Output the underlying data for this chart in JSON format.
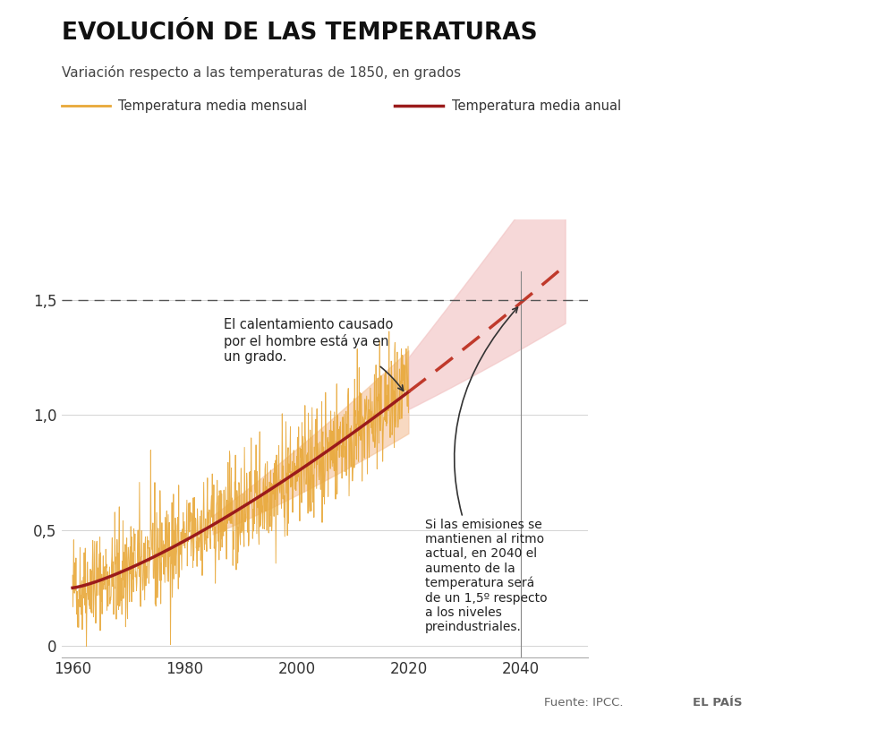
{
  "title": "EVOLUCIÓN DE LAS TEMPERATURAS",
  "subtitle": "Variación respecto a las temperaturas de 1850, en grados",
  "legend_monthly": "Temperatura media mensual",
  "legend_annual": "Temperatura media anual",
  "xlabel_ticks": [
    1960,
    1980,
    2000,
    2020,
    2040
  ],
  "yticks": [
    0,
    0.5,
    1.0,
    1.5
  ],
  "ylim": [
    -0.05,
    1.85
  ],
  "xlim": [
    1958,
    2052
  ],
  "color_monthly": "#E8A838",
  "color_annual": "#9B1B1B",
  "color_dashed": "#C0392B",
  "color_band_hist": "#F5C6A0",
  "color_band_future": "#F2C4C4",
  "dashed_line_y": 1.5,
  "source_text": "Fuente: IPCC.",
  "brand_text": "EL PAÍS",
  "background_color": "#FFFFFF",
  "ann1_text": "El calentamiento causado\npor el hombre está ya en\nun grado.",
  "ann2_text": "Si las emisiones se\nmantienen al ritmo\nactual, en 2040 el\naumento de la\ntemperatura será\nde un 1,5º respecto\na los niveles\npreindustriales."
}
